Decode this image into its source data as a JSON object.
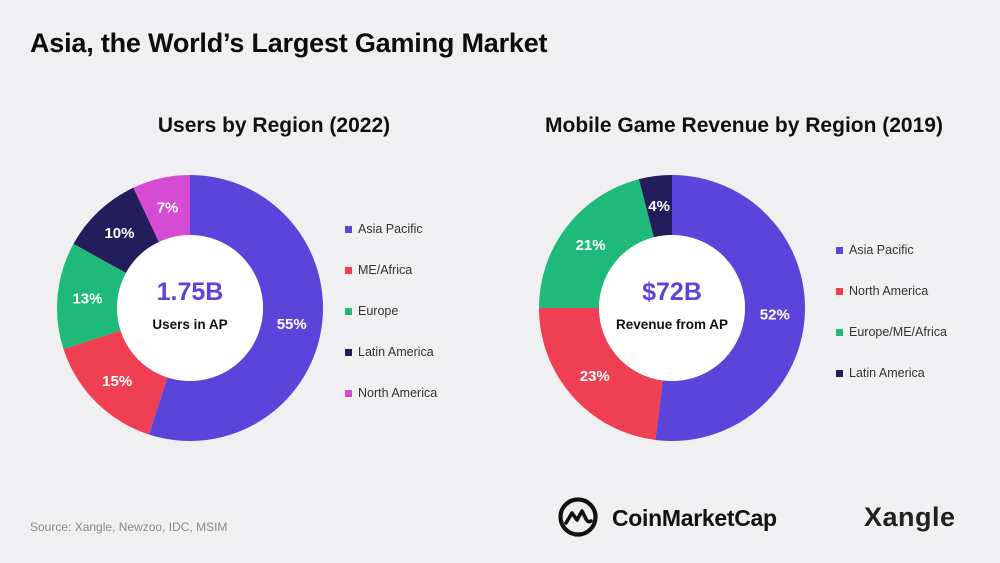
{
  "page": {
    "title": "Asia, the World’s Largest Gaming Market",
    "source": "Source: Xangle, Newzoo, IDC, MSIM",
    "brands": {
      "coinmarketcap": "CoinMarketCap",
      "xangle": "Xangle"
    }
  },
  "chart_data": [
    {
      "type": "pie",
      "variant": "donut",
      "title": "Users by Region (2022)",
      "center_value": "1.75B",
      "center_label": "Users in AP",
      "center_color": "#5b44d9",
      "legend_position": "right",
      "slices": [
        {
          "label": "Asia Pacific",
          "value": 55,
          "display": "55%",
          "color": "#5b44d9"
        },
        {
          "label": "ME/Africa",
          "value": 15,
          "display": "15%",
          "color": "#ef3f52"
        },
        {
          "label": "Europe",
          "value": 13,
          "display": "13%",
          "color": "#1fb97a"
        },
        {
          "label": "Latin America",
          "value": 10,
          "display": "10%",
          "color": "#231d5b"
        },
        {
          "label": "North America",
          "value": 7,
          "display": "7%",
          "color": "#d54bd4"
        }
      ]
    },
    {
      "type": "pie",
      "variant": "donut",
      "title": "Mobile Game Revenue by Region (2019)",
      "center_value": "$72B",
      "center_label": "Revenue from AP",
      "center_color": "#5b44d9",
      "legend_position": "right",
      "slices": [
        {
          "label": "Asia Pacific",
          "value": 52,
          "display": "52%",
          "color": "#5b44d9"
        },
        {
          "label": "North America",
          "value": 23,
          "display": "23%",
          "color": "#ef3f52"
        },
        {
          "label": "Europe/ME/Africa",
          "value": 21,
          "display": "21%",
          "color": "#1fb97a"
        },
        {
          "label": "Latin America",
          "value": 4,
          "display": "4%",
          "color": "#231d5b"
        }
      ]
    }
  ]
}
